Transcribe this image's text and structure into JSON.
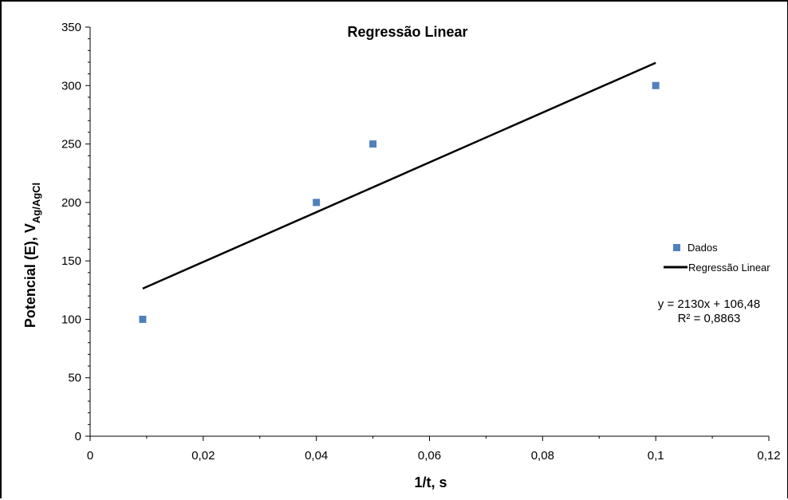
{
  "chart_data": {
    "type": "scatter",
    "title": "Regressão Linear",
    "xlabel": "1/t, s",
    "ylabel": {
      "main": "Potencial (E),  V",
      "subscript": "Ag/AgCl"
    },
    "xlim": [
      0,
      0.12
    ],
    "ylim": [
      0,
      350
    ],
    "x_ticks": [
      0,
      0.02,
      0.04,
      0.06,
      0.08,
      0.1,
      0.12
    ],
    "x_tick_labels": [
      "0",
      "0,02",
      "0,04",
      "0,06",
      "0,08",
      "0,1",
      "0,12"
    ],
    "y_ticks": [
      0,
      50,
      100,
      150,
      200,
      250,
      300,
      350
    ],
    "y_tick_labels": [
      "0",
      "50",
      "100",
      "150",
      "200",
      "250",
      "300",
      "350"
    ],
    "grid": false,
    "legend_position": "right",
    "series": [
      {
        "name": "Dados",
        "kind": "points",
        "color": "#4f81bd",
        "x": [
          0.0093,
          0.04,
          0.05,
          0.1
        ],
        "y": [
          100,
          200,
          250,
          300
        ]
      },
      {
        "name": "Regressão Linear",
        "kind": "line",
        "color": "#000000",
        "x": [
          0.0093,
          0.1
        ],
        "y": [
          126.29,
          319.48
        ]
      }
    ],
    "annotations": {
      "equation": "y = 2130x + 106,48",
      "r_squared": "R² = 0,8863"
    }
  }
}
